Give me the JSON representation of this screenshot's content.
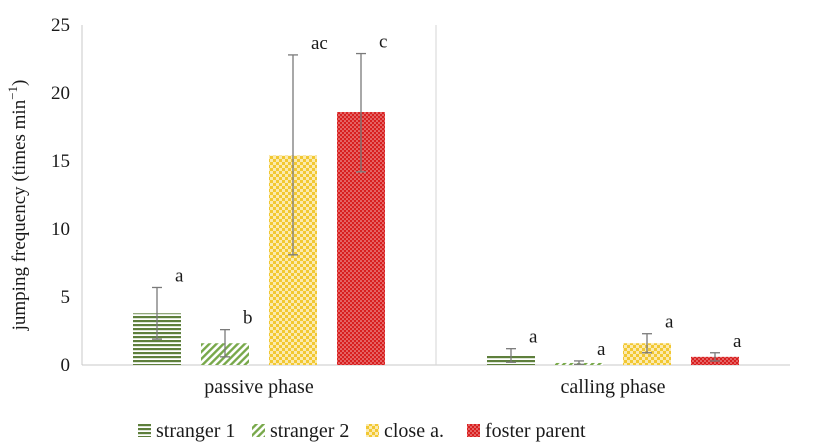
{
  "chart_data": {
    "type": "bar",
    "title": "",
    "ylabel": "jumping frequency (times min",
    "ylabel_sup": "−1",
    "ylabel_end": ")",
    "xlabel": "",
    "ylim": [
      0,
      25
    ],
    "yticks": [
      "0",
      "5",
      "10",
      "15",
      "20",
      "25"
    ],
    "categories": [
      "passive phase",
      "calling phase"
    ],
    "grid": "vertical separator between categories",
    "legend_position": "bottom",
    "series": [
      {
        "name": "stranger 1",
        "color": "#5e7f3c",
        "pattern": "horizontal-stripes",
        "values": [
          3.8,
          0.7
        ],
        "error": [
          [
            1.9,
            5.7
          ],
          [
            0.2,
            1.2
          ]
        ],
        "labels": [
          "a",
          "a"
        ]
      },
      {
        "name": "stranger 2",
        "color": "#78a84a",
        "pattern": "diagonal-stripes",
        "values": [
          1.6,
          0.15
        ],
        "error": [
          [
            0.6,
            2.6
          ],
          [
            0.05,
            0.3
          ]
        ],
        "labels": [
          "b",
          "a"
        ]
      },
      {
        "name": "close a.",
        "color": "#f2c832",
        "pattern": "checker",
        "values": [
          15.4,
          1.6
        ],
        "error": [
          [
            8.1,
            22.8
          ],
          [
            0.9,
            2.3
          ]
        ],
        "labels": [
          "ac",
          "a"
        ]
      },
      {
        "name": "foster parent",
        "color": "#d81f1f",
        "pattern": "dotted",
        "values": [
          18.6,
          0.6
        ],
        "error": [
          [
            14.2,
            22.9
          ],
          [
            0.3,
            0.9
          ]
        ],
        "labels": [
          "c",
          "a"
        ]
      }
    ]
  }
}
